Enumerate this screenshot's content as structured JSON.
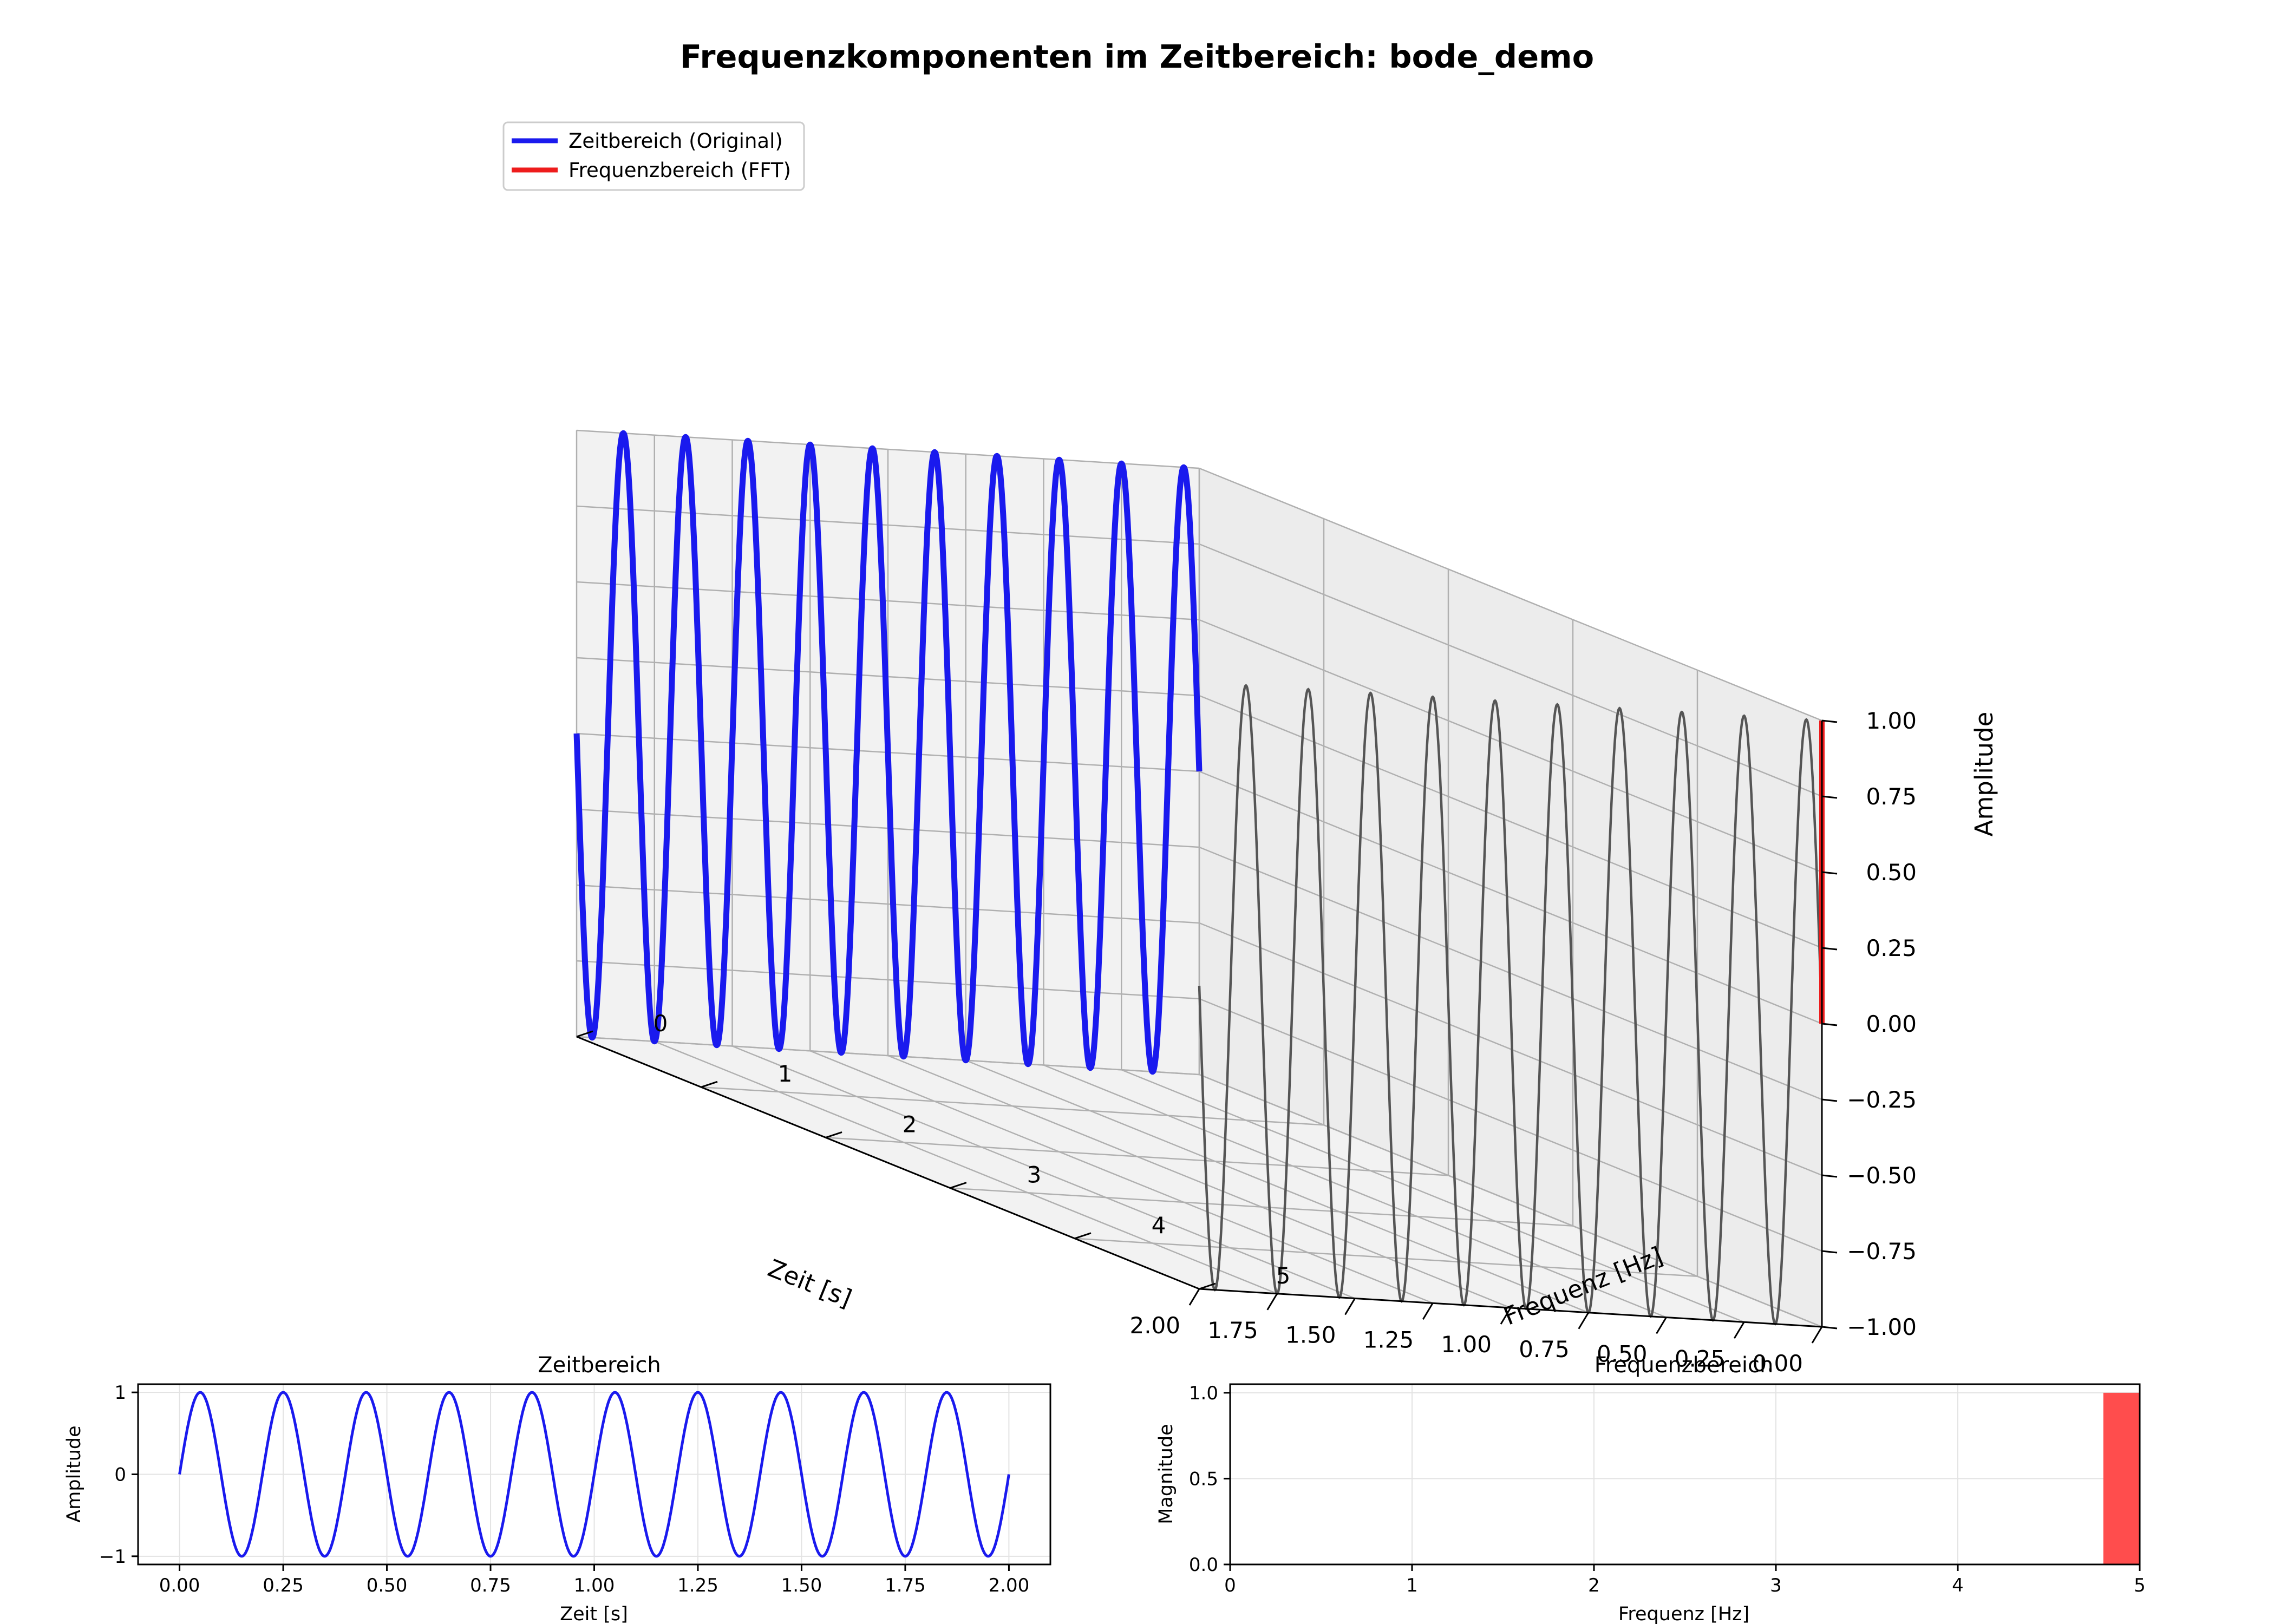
{
  "title": "Frequenzkomponenten im Zeitbereich: bode_demo",
  "chart_data": [
    {
      "type": "line3d",
      "legend": {
        "placement": "top-left",
        "entries": [
          {
            "label": "Zeitbereich (Original)",
            "color": "#1a1aee"
          },
          {
            "label": "Frequenzbereich (FFT)",
            "color": "#ee1c1c"
          }
        ]
      },
      "x_axis": {
        "label": "Zeit [s]",
        "range": [
          0,
          2
        ],
        "ticks": [
          "0.00",
          "0.25",
          "0.50",
          "0.75",
          "1.00",
          "1.25",
          "1.50",
          "1.75",
          "2.00"
        ]
      },
      "y_axis": {
        "label": "Frequenz [Hz]",
        "range": [
          0,
          5
        ],
        "ticks": [
          "0",
          "1",
          "2",
          "3",
          "4",
          "5"
        ]
      },
      "z_axis": {
        "label": "Amplitude",
        "range": [
          -1,
          1
        ],
        "ticks": [
          "−1.00",
          "−0.75",
          "−0.50",
          "−0.25",
          "0.00",
          "0.25",
          "0.50",
          "0.75",
          "1.00"
        ]
      },
      "signal": {
        "frequency_hz": 5,
        "amplitude": 1,
        "t_start": 0,
        "t_end": 2
      },
      "fft_peak": {
        "frequency_hz": 5,
        "magnitude": 1.0
      },
      "projection_color": "#555555",
      "grid": true
    },
    {
      "type": "line",
      "title": "Zeitbereich",
      "xlabel": "Zeit [s]",
      "ylabel": "Amplitude",
      "xlim": [
        -0.1,
        2.1
      ],
      "ylim": [
        -1.1,
        1.1
      ],
      "xticks": [
        "0.00",
        "0.25",
        "0.50",
        "0.75",
        "1.00",
        "1.25",
        "1.50",
        "1.75",
        "2.00"
      ],
      "yticks": [
        "−1",
        "0",
        "1"
      ],
      "series": [
        {
          "color": "#1a1aee",
          "frequency_hz": 5,
          "amplitude": 1
        }
      ],
      "grid": true
    },
    {
      "type": "bar",
      "title": "Frequenzbereich",
      "xlabel": "Frequenz [Hz]",
      "ylabel": "Magnitude",
      "xlim": [
        0,
        5
      ],
      "ylim": [
        0,
        1.05
      ],
      "xticks": [
        "0",
        "1",
        "2",
        "3",
        "4",
        "5"
      ],
      "yticks": [
        "0.0",
        "0.5",
        "1.0"
      ],
      "bars": [
        {
          "x": 5,
          "value": 1.0,
          "color": "#ff4d4d"
        }
      ],
      "grid": true
    }
  ]
}
